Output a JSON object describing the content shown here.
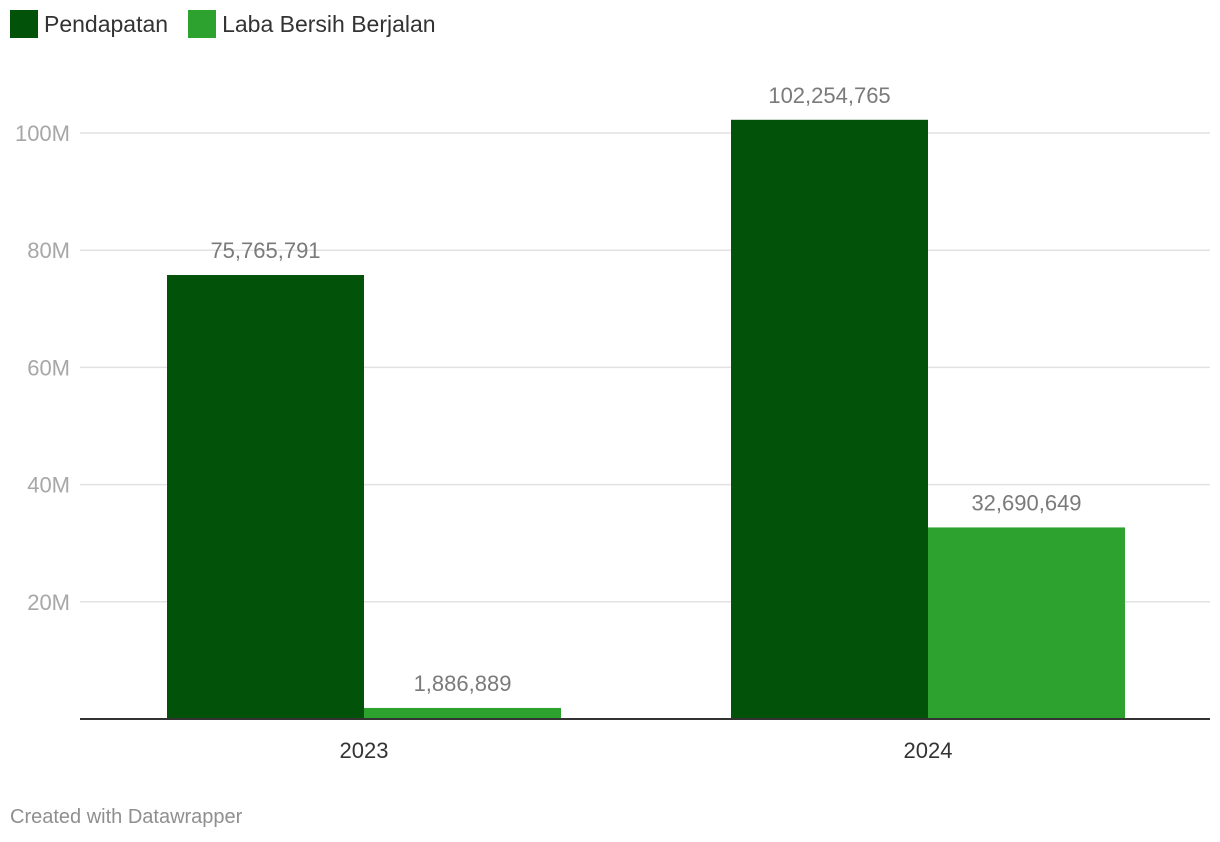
{
  "chart_data": {
    "type": "bar",
    "categories": [
      "2023",
      "2024"
    ],
    "series": [
      {
        "name": "Pendapatan",
        "color": "#03520a",
        "values": [
          75765791,
          102254765
        ],
        "labels": [
          "75,765,791",
          "102,254,765"
        ]
      },
      {
        "name": "Laba Bersih Berjalan",
        "color": "#2ea22f",
        "values": [
          1886889,
          32690649
        ],
        "labels": [
          "1,886,889",
          "32,690,649"
        ]
      }
    ],
    "yticks": [
      {
        "value": 20000000,
        "label": "20M"
      },
      {
        "value": 40000000,
        "label": "40M"
      },
      {
        "value": 60000000,
        "label": "60M"
      },
      {
        "value": 80000000,
        "label": "80M"
      },
      {
        "value": 100000000,
        "label": "100M"
      }
    ],
    "ylim": [
      0,
      100000000
    ],
    "grid": true,
    "legend_position": "top-left"
  },
  "footer": "Created with Datawrapper"
}
